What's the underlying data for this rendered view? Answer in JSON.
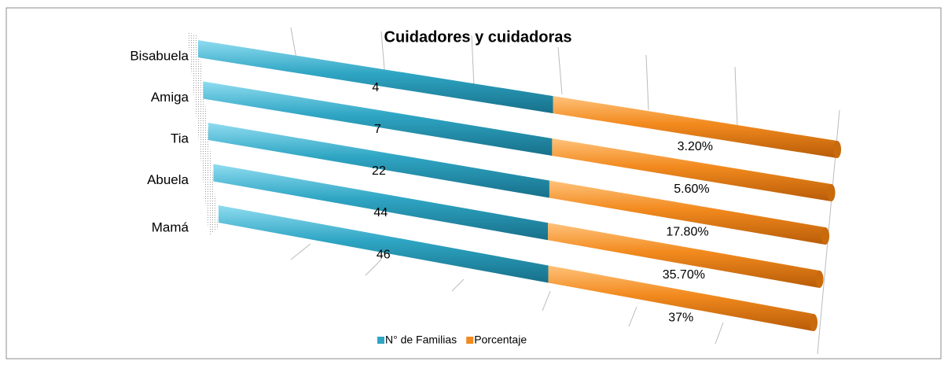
{
  "chart_data": {
    "type": "stacked_bar_3d",
    "title": "Cuidadores y cuidadoras",
    "categories": [
      "Bisabuela",
      "Amiga",
      "Tia",
      "Abuela",
      "Mamá"
    ],
    "series": [
      {
        "name": "N° de Familias",
        "color": "#2fa6c4",
        "values": [
          4,
          7,
          22,
          44,
          46
        ]
      },
      {
        "name": "Porcentaje",
        "color": "#f28a1e",
        "values": [
          3.2,
          5.6,
          17.8,
          35.7,
          37
        ],
        "value_labels": [
          "3.20%",
          "5.60%",
          "17.80%",
          "35.70%",
          "37%"
        ]
      }
    ],
    "legend": "bottom"
  }
}
